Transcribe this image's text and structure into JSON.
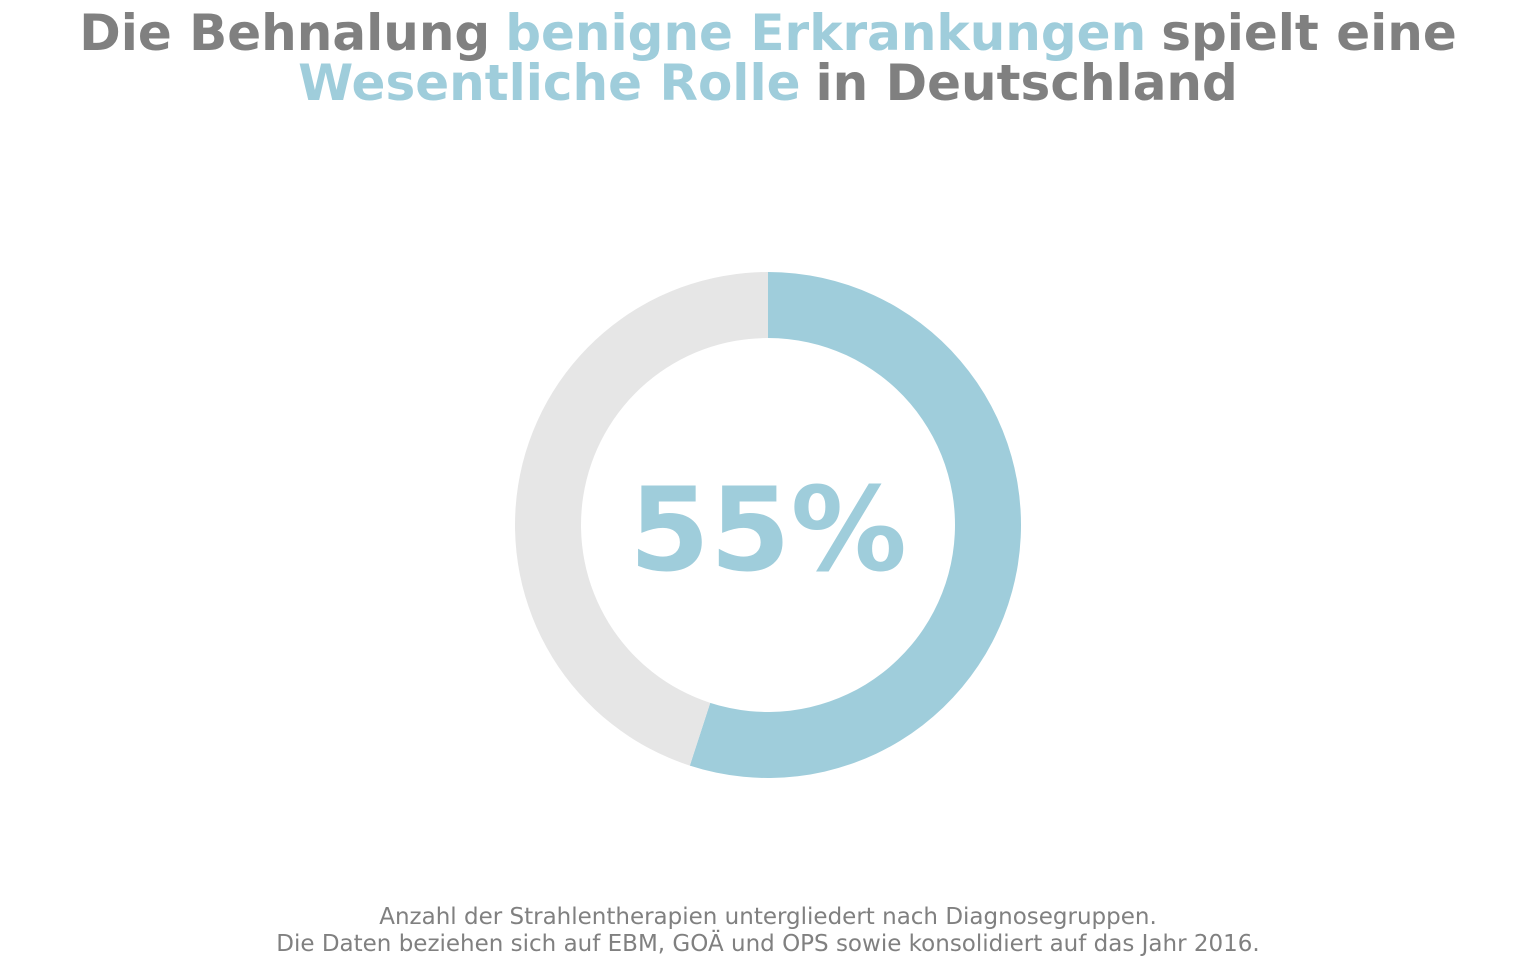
{
  "chart_data": {
    "type": "pie",
    "title": [
      [
        {
          "text": "Die Behnalung",
          "color": "#808080"
        },
        {
          "text": "benigne Erkrankungen",
          "color": "#9fcddb"
        },
        {
          "text": "spielt eine",
          "color": "#808080"
        }
      ],
      [
        {
          "text": "Wesentliche Rolle",
          "color": "#9fcddb"
        },
        {
          "text": "in Deutschland",
          "color": "#808080"
        }
      ]
    ],
    "values": [
      55,
      45
    ],
    "value_labels": [
      "55%",
      null
    ],
    "colors": [
      "#9fcddb",
      "#e6e6e6"
    ],
    "donut": true,
    "notes": [
      "Anzahl der Strahlentherapien untergliedert nach Diagnosegruppen.",
      "Die Daten beziehen sich auf EBM, GOÄ und OPS sowie konsolidiert auf das Jahr 2016."
    ]
  }
}
